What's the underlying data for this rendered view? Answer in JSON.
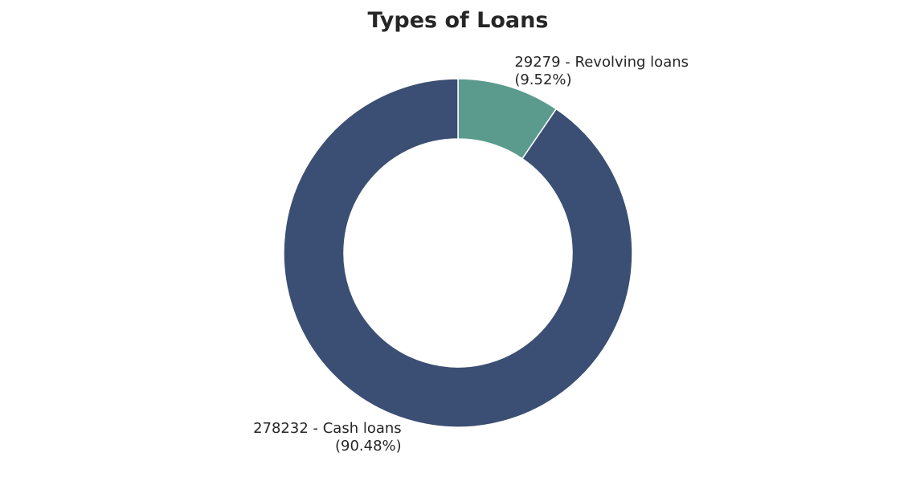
{
  "chart_data": {
    "type": "pie",
    "variant": "donut",
    "title": "Types of Loans",
    "slices": [
      {
        "category": "Revolving loans",
        "value": 29279,
        "percent": 9.52,
        "label_line1": "29279  - Revolving loans",
        "label_line2": "(9.52%)",
        "color": "#5b9b8e"
      },
      {
        "category": "Cash loans",
        "value": 278232,
        "percent": 90.48,
        "label_line1": "278232  - Cash loans",
        "label_line2": "(90.48%)",
        "color": "#3b4e73"
      }
    ],
    "start_angle": "top (12 o'clock)",
    "direction": "clockwise",
    "edge_color": "#ffffff",
    "legend": "none",
    "grid": false
  }
}
